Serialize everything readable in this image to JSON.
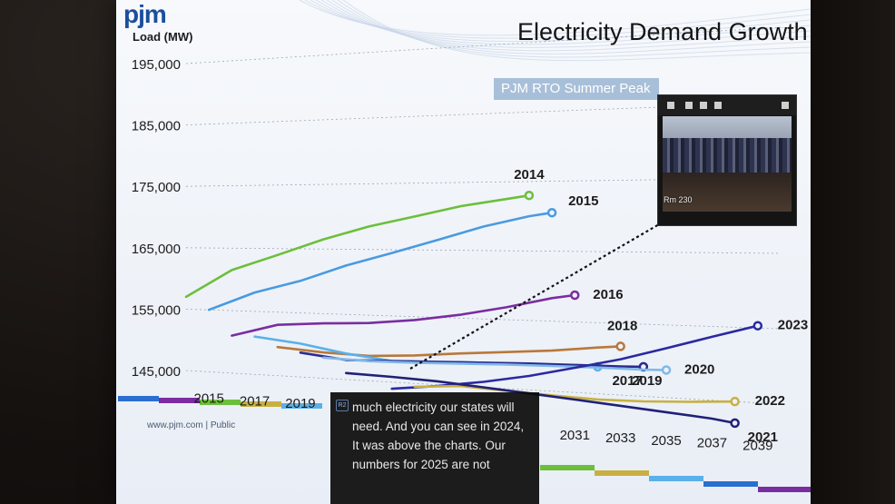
{
  "logo": "pjm",
  "chart_data": {
    "type": "line",
    "title": "Electricity Demand Growth",
    "subtitle": "PJM RTO Summer Peak",
    "ylabel": "Load (MW)",
    "ylim": [
      145000,
      195000
    ],
    "yticks": [
      "195,000",
      "185,000",
      "175,000",
      "165,000",
      "155,000",
      "145,000"
    ],
    "ytick_values": [
      195000,
      185000,
      175000,
      165000,
      155000,
      145000
    ],
    "xticks": [
      "2015",
      "2017",
      "2019",
      "2031",
      "2033",
      "2035",
      "2037",
      "2039"
    ],
    "xtick_values": [
      2015,
      2017,
      2019,
      2031,
      2033,
      2035,
      2037,
      2039
    ],
    "xlim": [
      2014,
      2040
    ],
    "series": [
      {
        "name": "2014",
        "color": "#6cbf3a",
        "x": [
          2014,
          2016,
          2018,
          2020,
          2022,
          2024,
          2026,
          2028,
          2029
        ],
        "values": [
          157000,
          161500,
          164000,
          166500,
          168500,
          170000,
          171500,
          172500,
          173000
        ]
      },
      {
        "name": "2015",
        "color": "#4a9ae0",
        "x": [
          2015,
          2017,
          2019,
          2021,
          2023,
          2025,
          2027,
          2029,
          2030
        ],
        "values": [
          155000,
          158000,
          160000,
          162500,
          164500,
          166500,
          168500,
          170000,
          170500
        ]
      },
      {
        "name": "2016",
        "color": "#7a2da0",
        "x": [
          2016,
          2018,
          2020,
          2022,
          2024,
          2026,
          2028,
          2030,
          2031
        ],
        "values": [
          151000,
          153000,
          153500,
          153800,
          154500,
          155500,
          156800,
          158300,
          158800
        ]
      },
      {
        "name": "2018",
        "color": "#b8783a",
        "x": [
          2018,
          2020,
          2022,
          2024,
          2026,
          2028,
          2030,
          2032,
          2033
        ],
        "values": [
          149500,
          149000,
          148800,
          149200,
          149800,
          150300,
          150800,
          151500,
          151800
        ]
      },
      {
        "name": "2017",
        "color": "#5ab0e8",
        "x": [
          2017,
          2019,
          2021,
          2023,
          2025,
          2027,
          2029,
          2032
        ],
        "values": [
          151000,
          150200,
          149000,
          148200,
          148400,
          148600,
          148700,
          148800
        ]
      },
      {
        "name": "2019",
        "color": "#2a2a90",
        "x": [
          2019,
          2021,
          2023,
          2025,
          2027,
          2029,
          2031,
          2033,
          2034
        ],
        "values": [
          148800,
          148000,
          148200,
          148400,
          148600,
          148800,
          148900,
          149000,
          149100
        ]
      },
      {
        "name": "2020",
        "color": "#7fb8e8",
        "x": [
          2020,
          2022,
          2024,
          2026,
          2028,
          2030,
          2032,
          2034,
          2035
        ],
        "values": [
          148200,
          148000,
          148100,
          148300,
          148500,
          148600,
          148700,
          148700,
          148800
        ]
      },
      {
        "name": "2023",
        "color": "#2a2aa0",
        "x": [
          2023,
          2025,
          2027,
          2029,
          2031,
          2033,
          2035,
          2037,
          2039
        ],
        "values": [
          144000,
          144800,
          145800,
          147000,
          148500,
          150000,
          151800,
          153600,
          155300
        ]
      },
      {
        "name": "2022",
        "color": "#c8b040",
        "x": [
          2024,
          2026,
          2028,
          2030,
          2032,
          2034,
          2036,
          2038
        ],
        "values": [
          144500,
          145000,
          144700,
          144400,
          144200,
          144300,
          144600,
          145000
        ]
      },
      {
        "name": "2021",
        "color": "#202078",
        "x": [
          2021,
          2023,
          2025,
          2027,
          2029,
          2031,
          2033,
          2035,
          2037,
          2038
        ],
        "values": [
          146000,
          145800,
          145500,
          145000,
          144500,
          144000,
          143500,
          143000,
          142500,
          142100
        ]
      }
    ]
  },
  "footer": "www.pjm.com | Public",
  "video": {
    "room": "Rm 230"
  },
  "caption": {
    "badge": "R2",
    "text": "much electricity our states will need. And you can see in 2024, It was above the charts. Our numbers for 2025 are not"
  }
}
